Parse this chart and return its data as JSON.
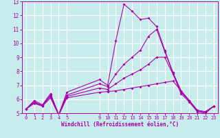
{
  "xlabel": "Windchill (Refroidissement éolien,°C)",
  "ylabel": "",
  "xlim": [
    -0.5,
    23.5
  ],
  "ylim": [
    5,
    13
  ],
  "yticks": [
    5,
    6,
    7,
    8,
    9,
    10,
    11,
    12,
    13
  ],
  "xticks": [
    0,
    1,
    2,
    3,
    4,
    5,
    9,
    10,
    11,
    12,
    13,
    14,
    15,
    16,
    17,
    18,
    19,
    20,
    21,
    22,
    23
  ],
  "bg_color": "#c8ecec",
  "line_color": "#aa00aa",
  "lines": [
    {
      "x": [
        0,
        1,
        2,
        3,
        4,
        5,
        9,
        10,
        11,
        12,
        13,
        14,
        15,
        16,
        17,
        18,
        19,
        20,
        21,
        22,
        23
      ],
      "y": [
        5.3,
        5.9,
        5.6,
        6.4,
        4.9,
        6.5,
        7.4,
        7.0,
        10.2,
        12.8,
        12.3,
        11.7,
        11.8,
        11.2,
        9.5,
        7.9,
        6.6,
        5.9,
        5.2,
        5.1,
        5.5
      ]
    },
    {
      "x": [
        0,
        1,
        2,
        3,
        4,
        5,
        9,
        10,
        11,
        12,
        13,
        14,
        15,
        16,
        17,
        18,
        19,
        20,
        21,
        22,
        23
      ],
      "y": [
        5.3,
        5.8,
        5.55,
        6.3,
        4.9,
        6.3,
        7.1,
        6.9,
        7.8,
        8.5,
        9.0,
        9.5,
        10.5,
        11.0,
        9.4,
        7.9,
        6.5,
        5.9,
        5.1,
        5.1,
        5.5
      ]
    },
    {
      "x": [
        0,
        1,
        2,
        3,
        4,
        5,
        9,
        10,
        11,
        12,
        13,
        14,
        15,
        16,
        17,
        18,
        19,
        20,
        21,
        22,
        23
      ],
      "y": [
        5.3,
        5.75,
        5.55,
        6.2,
        4.9,
        6.2,
        6.8,
        6.7,
        7.1,
        7.5,
        7.8,
        8.1,
        8.5,
        9.0,
        9.0,
        7.8,
        6.4,
        5.8,
        5.1,
        5.0,
        5.5
      ]
    },
    {
      "x": [
        0,
        1,
        2,
        3,
        4,
        5,
        9,
        10,
        11,
        12,
        13,
        14,
        15,
        16,
        17,
        18,
        19,
        20,
        21,
        22,
        23
      ],
      "y": [
        5.3,
        5.7,
        5.5,
        6.1,
        4.85,
        6.1,
        6.5,
        6.55,
        6.6,
        6.7,
        6.8,
        6.9,
        7.0,
        7.1,
        7.2,
        7.3,
        6.6,
        5.9,
        5.2,
        5.1,
        5.5
      ]
    }
  ]
}
